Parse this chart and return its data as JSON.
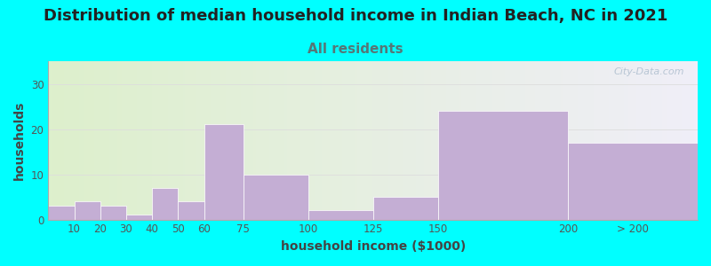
{
  "title": "Distribution of median household income in Indian Beach, NC in 2021",
  "subtitle": "All residents",
  "xlabel": "household income ($1000)",
  "ylabel": "households",
  "background_color": "#00FFFF",
  "plot_bg_color_left": "#ddf0cc",
  "plot_bg_color_right": "#f0eef8",
  "bar_color": "#c4aed4",
  "bar_edge_color": "#ffffff",
  "title_color": "#222222",
  "subtitle_color": "#557777",
  "axis_label_color": "#444444",
  "tick_color": "#555555",
  "grid_color": "#dddddd",
  "watermark_text": "City-Data.com",
  "watermark_color": "#aabbcc",
  "values": [
    3,
    4,
    3,
    1,
    7,
    4,
    21,
    10,
    2,
    5,
    24,
    17
  ],
  "bin_edges": [
    0,
    10,
    20,
    30,
    40,
    50,
    60,
    75,
    100,
    125,
    150,
    200,
    250
  ],
  "xtick_positions": [
    10,
    20,
    30,
    40,
    50,
    60,
    75,
    100,
    125,
    150,
    200
  ],
  "xtick_labels": [
    "10",
    "20",
    "30",
    "40",
    "50",
    "60",
    "75",
    "100",
    "125",
    "150",
    "200"
  ],
  "last_bar_label": "> 200",
  "ylim": [
    0,
    35
  ],
  "yticks": [
    0,
    10,
    20,
    30
  ],
  "title_fontsize": 13,
  "subtitle_fontsize": 11,
  "axis_label_fontsize": 10,
  "tick_fontsize": 8.5
}
